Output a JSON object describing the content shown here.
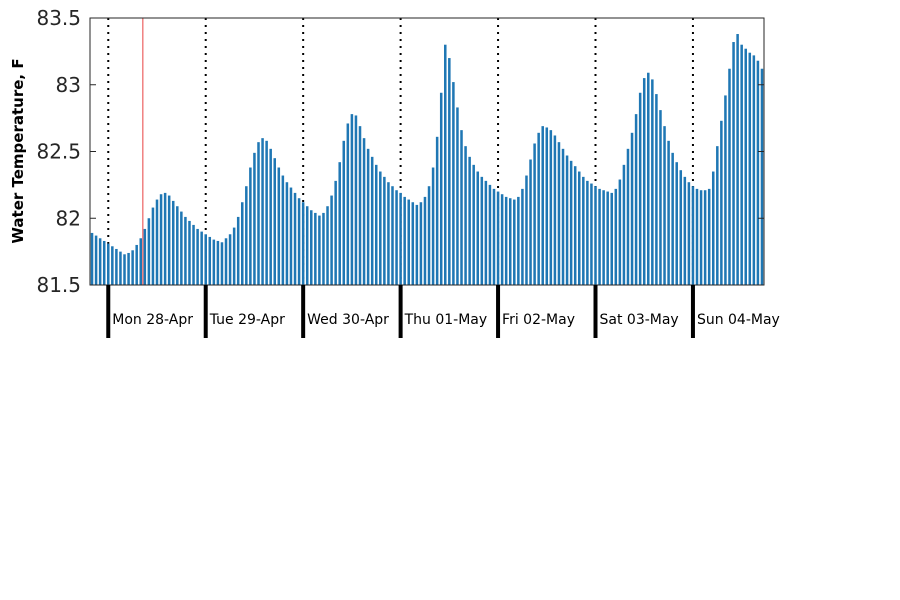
{
  "chart_data": {
    "type": "bar",
    "ylabel": "Water Temperature, F",
    "ylim": [
      81.5,
      83.5
    ],
    "yticks": [
      "81.5",
      "82",
      "82.5",
      "83",
      "83.5"
    ],
    "x_start": "Sun 27-Apr 20:00",
    "x_end": "Sun 04-May 17:00",
    "interval_hours": 1,
    "day_labels": [
      "Mon 28-Apr",
      "Tue 29-Apr",
      "Wed 30-Apr",
      "Thu 01-May",
      "Fri 02-May",
      "Sat 03-May",
      "Sun 04-May"
    ],
    "marker_time": "Mon 28-Apr 08:00",
    "bar_color": "#1f77b4",
    "marker_color": "#f08080",
    "values": [
      81.89,
      81.87,
      81.85,
      81.83,
      81.81,
      81.79,
      81.77,
      81.75,
      81.73,
      81.74,
      81.76,
      81.8,
      81.85,
      81.92,
      82.0,
      82.08,
      82.14,
      82.18,
      82.19,
      82.17,
      82.13,
      82.09,
      82.05,
      82.01,
      81.98,
      81.95,
      81.92,
      81.9,
      81.88,
      81.86,
      81.84,
      81.83,
      81.82,
      81.85,
      81.88,
      81.93,
      82.01,
      82.12,
      82.24,
      82.38,
      82.49,
      82.57,
      82.6,
      82.58,
      82.52,
      82.45,
      82.38,
      82.32,
      82.27,
      82.23,
      82.19,
      82.15,
      82.12,
      82.09,
      82.06,
      82.04,
      82.02,
      82.04,
      82.09,
      82.17,
      82.28,
      82.42,
      82.58,
      82.71,
      82.78,
      82.77,
      82.69,
      82.6,
      82.52,
      82.46,
      82.4,
      82.35,
      82.31,
      82.27,
      82.24,
      82.21,
      82.19,
      82.16,
      82.14,
      82.12,
      82.1,
      82.12,
      82.16,
      82.24,
      82.38,
      82.61,
      82.94,
      83.3,
      83.2,
      83.02,
      82.83,
      82.66,
      82.54,
      82.46,
      82.4,
      82.35,
      82.31,
      82.28,
      82.25,
      82.22,
      82.2,
      82.18,
      82.16,
      82.15,
      82.14,
      82.16,
      82.22,
      82.32,
      82.44,
      82.56,
      82.64,
      82.69,
      82.68,
      82.66,
      82.62,
      82.57,
      82.52,
      82.47,
      82.43,
      82.39,
      82.35,
      82.31,
      82.28,
      82.26,
      82.24,
      82.22,
      82.21,
      82.2,
      82.19,
      82.22,
      82.29,
      82.4,
      82.52,
      82.64,
      82.78,
      82.94,
      83.05,
      83.09,
      83.04,
      82.93,
      82.81,
      82.69,
      82.58,
      82.49,
      82.42,
      82.36,
      82.31,
      82.27,
      82.24,
      82.22,
      82.21,
      82.21,
      82.22,
      82.35,
      82.54,
      82.73,
      82.92,
      83.12,
      83.32,
      83.38,
      83.3,
      83.27,
      83.24,
      83.22,
      83.18,
      83.12
    ]
  }
}
